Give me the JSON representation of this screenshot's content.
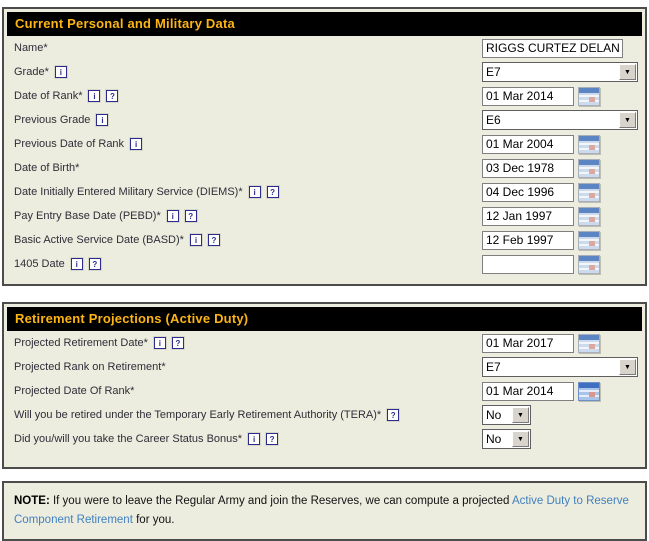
{
  "colors": {
    "section_background": "#ececdf",
    "header_background": "#000000",
    "header_text": "#fcb514",
    "link": "#4181c0",
    "border": "#4c4c4c"
  },
  "icons": {
    "info_glyph": "i",
    "help_glyph": "?",
    "dropdown_arrow": "▼"
  },
  "sections": [
    {
      "title": "Current Personal and Military Data",
      "rows": [
        {
          "label": "Name*",
          "value": "RIGGS CURTEZ DELAN"
        },
        {
          "label": "Grade*",
          "value": "E7"
        },
        {
          "label": "Date of Rank*",
          "value": "01 Mar 2014"
        },
        {
          "label": "Previous Grade",
          "value": "E6"
        },
        {
          "label": "Previous Date of Rank",
          "value": "01 Mar 2004"
        },
        {
          "label": "Date of Birth*",
          "value": "03 Dec 1978"
        },
        {
          "label": "Date Initially Entered Military Service (DIEMS)*",
          "value": "04 Dec 1996"
        },
        {
          "label": "Pay Entry Base Date (PEBD)*",
          "value": "12 Jan 1997"
        },
        {
          "label": "Basic Active Service Date (BASD)*",
          "value": "12 Feb 1997"
        },
        {
          "label": "1405 Date",
          "value": ""
        }
      ]
    },
    {
      "title": "Retirement Projections (Active Duty)",
      "rows": [
        {
          "label": "Projected Retirement Date*",
          "value": "01 Mar 2017"
        },
        {
          "label": "Projected Rank on Retirement*",
          "value": "E7"
        },
        {
          "label": "Projected Date Of Rank*",
          "value": "01 Mar 2014"
        },
        {
          "label": "Will you be retired under the Temporary Early Retirement Authority (TERA)*",
          "value": "No"
        },
        {
          "label": "Did you/will you take the Career Status Bonus*",
          "value": "No"
        }
      ]
    }
  ],
  "note": {
    "prefix": "NOTE:",
    "text_before_link": " If you were to leave the Regular Army and join the Reserves, we can compute a projected ",
    "link": "Active Duty to Reserve Component Retirement",
    "text_after_link": " for you."
  }
}
